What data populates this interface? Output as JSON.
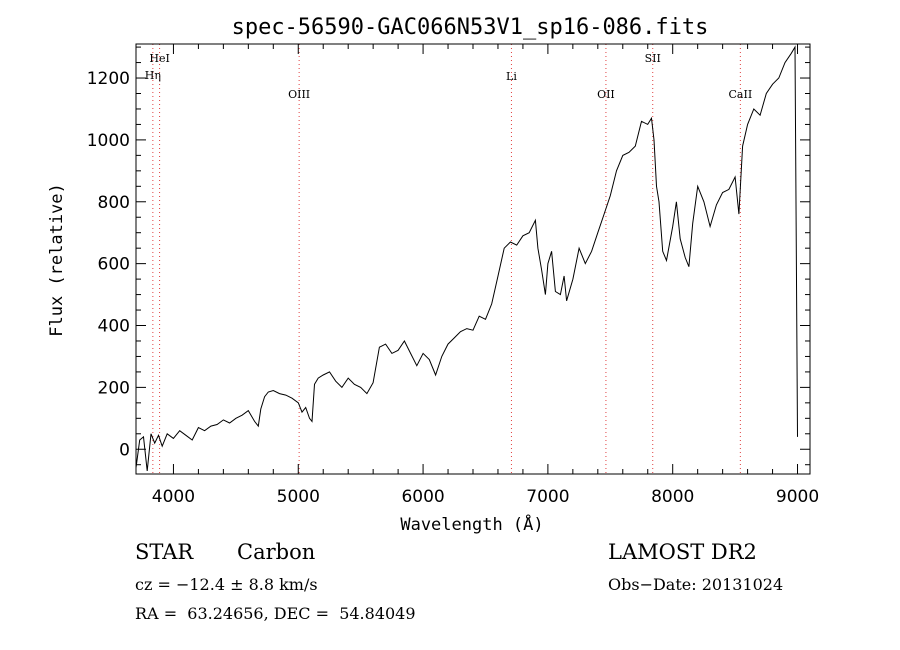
{
  "chart_data": {
    "type": "line",
    "title": "spec-56590-GAC066N53V1_sp16-086.fits",
    "xlabel": "Wavelength (Å)",
    "ylabel": "Flux (relative)",
    "xlim": [
      3700,
      9100
    ],
    "ylim": [
      -80,
      1310
    ],
    "x_ticks": [
      4000,
      5000,
      6000,
      7000,
      8000,
      9000
    ],
    "y_ticks": [
      0,
      200,
      400,
      600,
      800,
      1000,
      1200
    ],
    "grid": false,
    "line_color": "#000000",
    "marker_color": "#e04040",
    "lines": [
      {
        "label": "HeI",
        "wavelength": 3889
      },
      {
        "label": "Hη",
        "wavelength": 3835
      },
      {
        "label": "OIII",
        "wavelength": 5007
      },
      {
        "label": "Li",
        "wavelength": 6708
      },
      {
        "label": "OII",
        "wavelength": 7465
      },
      {
        "label": "SII",
        "wavelength": 7840
      },
      {
        "label": "CaII",
        "wavelength": 8542
      }
    ],
    "series": [
      {
        "x": [
          3700,
          3730,
          3760,
          3790,
          3820,
          3850,
          3880,
          3910,
          3950,
          4000,
          4050,
          4100,
          4150,
          4200,
          4250,
          4300,
          4350,
          4400,
          4450,
          4500,
          4550,
          4600,
          4650,
          4680,
          4700,
          4730,
          4760,
          4800,
          4850,
          4900,
          4950,
          5000,
          5030,
          5060,
          5090,
          5110,
          5130,
          5160,
          5200,
          5250,
          5300,
          5350,
          5400,
          5450,
          5500,
          5550,
          5600,
          5650,
          5700,
          5750,
          5800,
          5850,
          5900,
          5950,
          6000,
          6050,
          6100,
          6150,
          6200,
          6250,
          6300,
          6350,
          6400,
          6450,
          6500,
          6550,
          6600,
          6650,
          6700,
          6750,
          6800,
          6850,
          6900,
          6920,
          6950,
          6980,
          7000,
          7030,
          7060,
          7100,
          7130,
          7150,
          7200,
          7250,
          7300,
          7350,
          7400,
          7450,
          7500,
          7550,
          7600,
          7650,
          7700,
          7750,
          7800,
          7830,
          7850,
          7870,
          7890,
          7920,
          7950,
          8000,
          8030,
          8060,
          8100,
          8130,
          8160,
          8200,
          8250,
          8300,
          8350,
          8400,
          8450,
          8500,
          8530,
          8560,
          8600,
          8650,
          8700,
          8750,
          8800,
          8850,
          8900,
          8950,
          8980,
          9000
        ],
        "y": [
          -60,
          30,
          40,
          -70,
          50,
          20,
          45,
          10,
          50,
          35,
          60,
          45,
          30,
          70,
          60,
          75,
          80,
          95,
          85,
          100,
          110,
          125,
          90,
          75,
          130,
          170,
          185,
          190,
          180,
          175,
          165,
          150,
          120,
          135,
          100,
          90,
          210,
          230,
          240,
          250,
          220,
          200,
          230,
          210,
          200,
          180,
          215,
          330,
          340,
          310,
          320,
          350,
          310,
          270,
          310,
          290,
          240,
          300,
          340,
          360,
          380,
          390,
          385,
          430,
          420,
          470,
          560,
          650,
          670,
          660,
          690,
          700,
          740,
          650,
          580,
          500,
          600,
          640,
          510,
          500,
          560,
          480,
          550,
          650,
          600,
          640,
          700,
          760,
          820,
          900,
          950,
          960,
          980,
          1060,
          1050,
          1070,
          1000,
          850,
          800,
          640,
          610,
          720,
          800,
          680,
          620,
          590,
          730,
          850,
          800,
          720,
          790,
          830,
          840,
          880,
          760,
          980,
          1050,
          1100,
          1080,
          1150,
          1180,
          1200,
          1250,
          1280,
          1300,
          40
        ]
      }
    ]
  },
  "info": {
    "object_type": "STAR",
    "subclass": "Carbon",
    "survey": "LAMOST DR2",
    "redshift": "cz = −12.4 ± 8.8 km/s",
    "obs_date": "Obs−Date: 20131024",
    "coords": "RA =  63.24656, DEC =  54.84049"
  }
}
